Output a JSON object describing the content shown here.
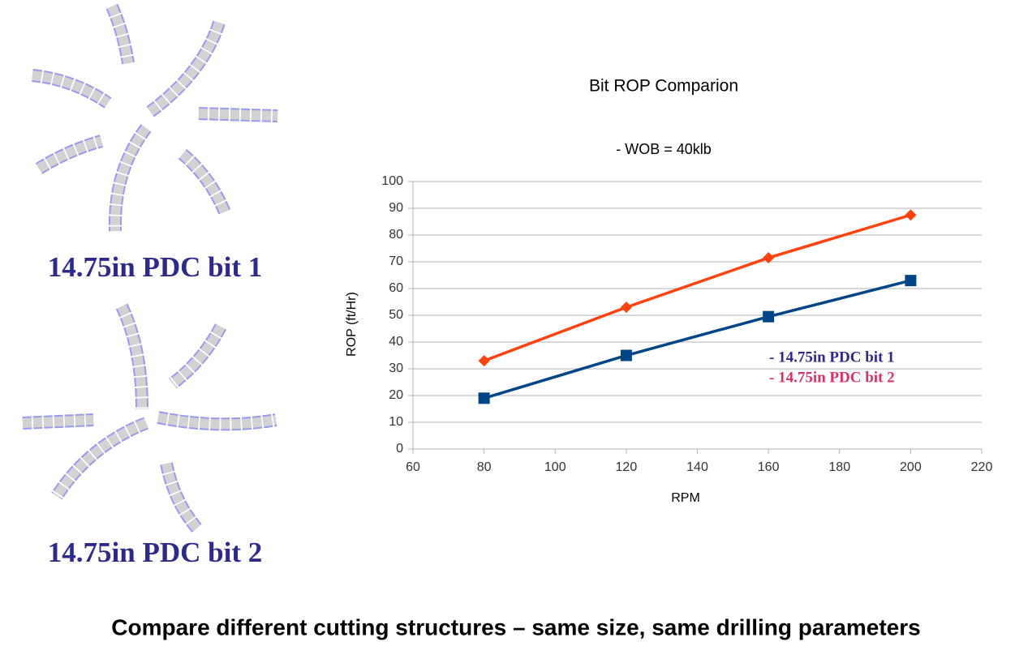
{
  "bit_labels": [
    "14.75in PDC bit 1",
    "14.75in PDC bit 2"
  ],
  "caption": "Compare different cutting structures – same size, same drilling parameters",
  "chart_data": {
    "type": "line",
    "title": "Bit ROP Comparion",
    "subtitle": "- WOB = 40klb",
    "x_label": "RPM",
    "y_label": "ROP (ft/Hr)",
    "x": [
      80,
      120,
      160,
      200
    ],
    "series": [
      {
        "name": "- 14.75in PDC bit 1",
        "color": "#004586",
        "label_color": "#2e2a8a",
        "marker": "square",
        "values": [
          19,
          35,
          49.5,
          63
        ]
      },
      {
        "name": "- 14.75in PDC bit 2",
        "color": "#ff420e",
        "label_color": "#d6336c",
        "marker": "diamond",
        "values": [
          33,
          53,
          71.5,
          87.5
        ]
      }
    ],
    "xlim": [
      60,
      220
    ],
    "xticks": [
      60,
      80,
      100,
      120,
      140,
      160,
      180,
      200,
      220
    ],
    "ylim": [
      0,
      100
    ],
    "yticks": [
      0,
      10,
      20,
      30,
      40,
      50,
      60,
      70,
      80,
      90,
      100
    ],
    "grid": true
  }
}
